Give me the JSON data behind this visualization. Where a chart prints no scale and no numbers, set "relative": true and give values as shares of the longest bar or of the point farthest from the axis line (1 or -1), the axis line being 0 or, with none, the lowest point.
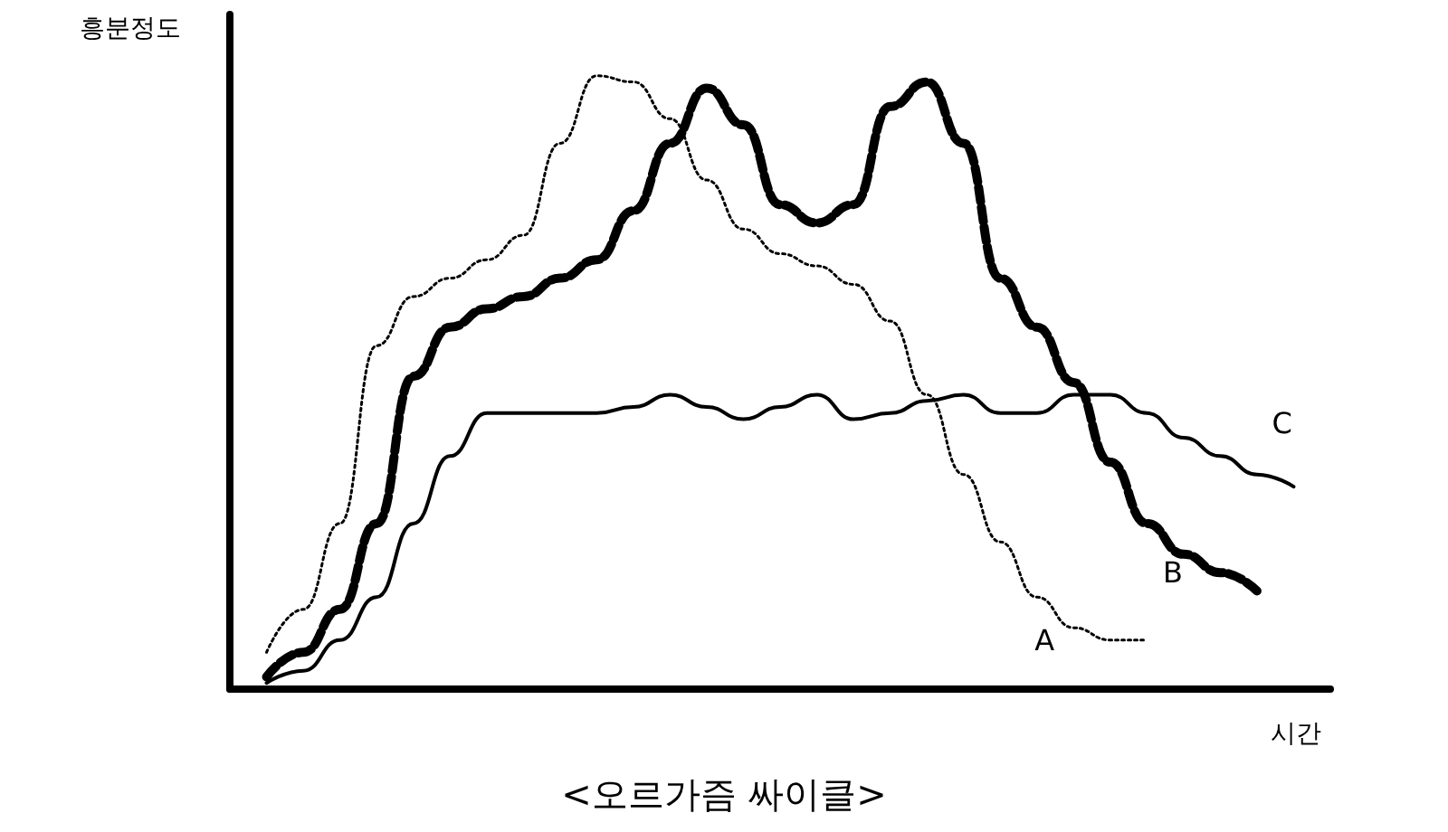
{
  "chart_data": {
    "type": "line",
    "title": "<오르가즘 싸이클>",
    "xlabel": "시간",
    "ylabel": "흥분정도",
    "relative": true,
    "legend": false,
    "grid": false,
    "marker": "none",
    "categories": [
      null,
      null,
      null,
      null,
      null,
      null,
      null,
      null,
      null,
      null,
      null,
      null,
      null,
      null,
      null,
      null,
      null,
      null,
      null,
      null,
      null,
      null,
      null,
      null,
      null,
      null,
      null,
      null,
      null,
      null,
      null
    ],
    "series": [
      {
        "name": "A",
        "color": "#000000",
        "line_style": "dotted",
        "values": [
          null,
          0.06,
          0.13,
          0.27,
          0.56,
          0.64,
          0.67,
          0.7,
          0.74,
          0.89,
          1,
          0.99,
          0.93,
          0.83,
          0.75,
          0.71,
          0.69,
          0.66,
          0.6,
          0.48,
          0.35,
          0.24,
          0.15,
          0.1,
          0.08,
          0.08,
          null,
          null,
          null,
          null,
          null
        ]
      },
      {
        "name": "B",
        "color": "#000000",
        "line_style": "dashed",
        "values": [
          null,
          0.02,
          0.06,
          0.13,
          0.27,
          0.51,
          0.59,
          0.62,
          0.64,
          0.67,
          0.7,
          0.78,
          0.89,
          0.98,
          0.92,
          0.79,
          0.76,
          0.79,
          0.95,
          0.99,
          0.89,
          0.67,
          0.59,
          0.5,
          0.37,
          0.27,
          0.22,
          0.19,
          0.16,
          null,
          null
        ]
      },
      {
        "name": "C",
        "color": "#000000",
        "line_style": "solid",
        "values": [
          null,
          0.01,
          0.03,
          0.08,
          0.15,
          0.27,
          0.38,
          0.45,
          0.45,
          0.45,
          0.45,
          0.46,
          0.48,
          0.46,
          0.44,
          0.46,
          0.48,
          0.44,
          0.45,
          0.47,
          0.48,
          0.45,
          0.45,
          0.48,
          0.48,
          0.45,
          0.41,
          0.38,
          0.35,
          0.33,
          null
        ]
      }
    ]
  }
}
